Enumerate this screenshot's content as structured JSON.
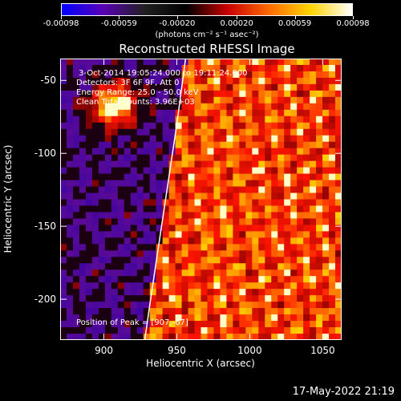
{
  "colorbar": {
    "ticks": [
      "-0.00098",
      "-0.00059",
      "-0.00020",
      "0.00020",
      "0.00059",
      "0.00098"
    ],
    "tick_values": [
      -0.00098,
      -0.00059,
      -0.0002,
      0.0002,
      0.00059,
      0.00098
    ],
    "units": "(photons cm⁻² s⁻¹ asec⁻²)",
    "colors": [
      "#0000ff",
      "#5a00b4",
      "#202020",
      "#000000",
      "#c80000",
      "#ff6a00",
      "#ffd400",
      "#ffffff"
    ]
  },
  "chart_data": {
    "type": "heatmap",
    "title": "Reconstructed RHESSI Image",
    "xlabel": "Heliocentric X (arcsec)",
    "ylabel": "Heliocentric Y (arcsec)",
    "xlim": [
      870,
      1063
    ],
    "ylim": [
      -228,
      -35
    ],
    "x_ticks": [
      900,
      950,
      1000,
      1050
    ],
    "y_ticks": [
      -50,
      -100,
      -150,
      -200
    ],
    "annotations": [
      "3-Oct-2014 19:05:24.000 to 19:11:24.000",
      "Detectors: 3F 6F 9F, Att 0",
      "Energy Range: 25.0 - 50.0 keV",
      "Clean   Total counts: 3.96E+03"
    ],
    "peak_label": "Position of Peak = [907,-67]",
    "peak": [
      907,
      -67
    ],
    "limb_curve": [
      [
        956,
        -35
      ],
      [
        950,
        -80
      ],
      [
        944,
        -120
      ],
      [
        938,
        -160
      ],
      [
        932,
        -200
      ],
      [
        928,
        -228
      ]
    ]
  },
  "footer": {
    "date": "17-May-2022 21:19"
  }
}
